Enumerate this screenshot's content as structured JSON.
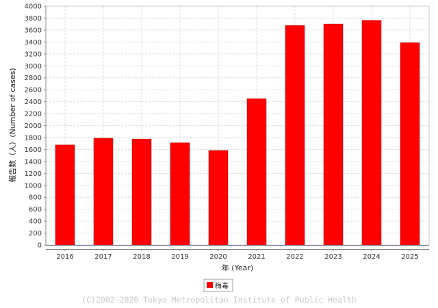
{
  "chart_data": {
    "type": "bar",
    "categories": [
      "2016",
      "2017",
      "2018",
      "2019",
      "2020",
      "2021",
      "2022",
      "2023",
      "2024",
      "2025"
    ],
    "series": [
      {
        "name": "梅毒",
        "values": [
          1676,
          1788,
          1775,
          1712,
          1584,
          2451,
          3677,
          3701,
          3763,
          3387
        ]
      }
    ],
    "xlabel": "年 (Year)",
    "ylabel": "報告数（人）(Number of cases)",
    "ylim": [
      0,
      4000
    ],
    "yticks": [
      0,
      200,
      400,
      600,
      800,
      1000,
      1200,
      1400,
      1600,
      1800,
      2000,
      2200,
      2400,
      2600,
      2800,
      3000,
      3200,
      3400,
      3600,
      3800,
      4000
    ],
    "grid": true,
    "legend": "bottom-center",
    "bar_color": "#ff0000",
    "copyright": "(C)2002-2026 Tokyo Metropolitan Institute of Public Health"
  }
}
